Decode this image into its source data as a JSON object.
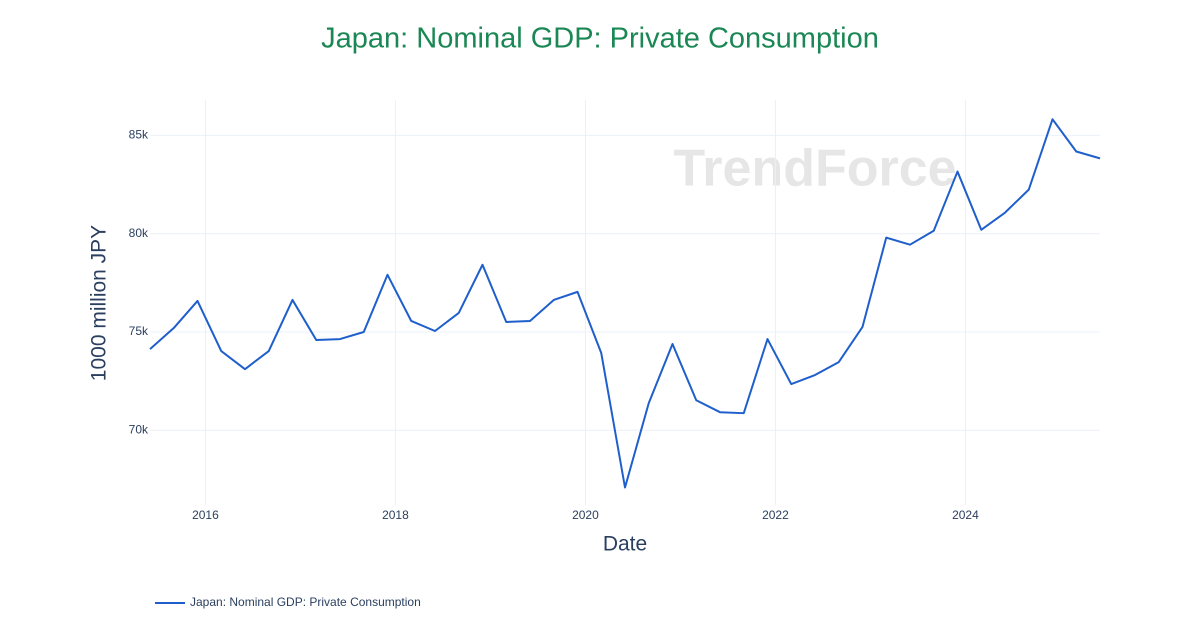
{
  "chart_data": {
    "type": "line",
    "title": "Japan: Nominal GDP: Private Consumption",
    "x_label": "Date",
    "y_label": "1000 million JPY",
    "watermark": "TrendForce",
    "x": [
      "2015-06",
      "2015-09",
      "2015-12",
      "2016-03",
      "2016-06",
      "2016-09",
      "2016-12",
      "2017-03",
      "2017-06",
      "2017-09",
      "2017-12",
      "2018-03",
      "2018-06",
      "2018-09",
      "2018-12",
      "2019-03",
      "2019-06",
      "2019-09",
      "2019-12",
      "2020-03",
      "2020-06",
      "2020-09",
      "2020-12",
      "2021-03",
      "2021-06",
      "2021-09",
      "2021-12",
      "2022-03",
      "2022-06",
      "2022-09",
      "2022-12",
      "2023-03",
      "2023-06",
      "2023-09",
      "2023-12",
      "2024-03",
      "2024-06",
      "2024-09",
      "2024-12",
      "2025-03",
      "2025-06"
    ],
    "series": [
      {
        "name": "Japan: Nominal GDP: Private Consumption",
        "color": "#1f5fcc",
        "values": [
          74130,
          75200,
          76580,
          74030,
          73110,
          74030,
          76630,
          74590,
          74640,
          75000,
          77910,
          75560,
          75050,
          75970,
          78420,
          75510,
          75560,
          76630,
          77040,
          73930,
          67090,
          71380,
          74390,
          71530,
          70920,
          70870,
          74640,
          72350,
          72810,
          73470,
          75260,
          79800,
          79440,
          80150,
          83160,
          80200,
          81070,
          82240,
          85820,
          84180,
          83830
        ]
      }
    ],
    "xlim": [
      "2015-06",
      "2025-06"
    ],
    "xticks": [
      "2016",
      "2018",
      "2020",
      "2022",
      "2024"
    ],
    "ylim": [
      66200,
      86800
    ],
    "yticks": [
      {
        "value": 70000,
        "label": "70k"
      },
      {
        "value": 75000,
        "label": "75k"
      },
      {
        "value": 80000,
        "label": "80k"
      },
      {
        "value": 85000,
        "label": "85k"
      }
    ],
    "grid": true,
    "legend": "bottom-left"
  }
}
